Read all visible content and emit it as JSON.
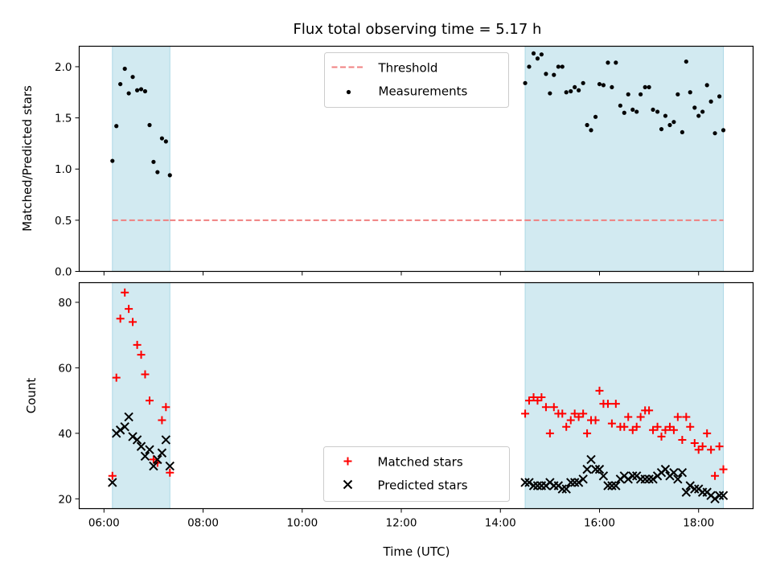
{
  "title": "Flux total observing time = 5.17 h",
  "colors": {
    "shade": "#add8e6",
    "threshold": "#f08080",
    "measurement": "#000000",
    "matched": "#ff0000",
    "predicted": "#000000"
  },
  "chart_data": [
    {
      "type": "scatter",
      "panel": "top",
      "xlabel": "",
      "ylabel": "Matched/Predicted stars",
      "x_unit": "hours (UTC)",
      "xlim": [
        5.5,
        19.1
      ],
      "ylim": [
        0.0,
        2.2
      ],
      "yticks": [
        0.0,
        0.5,
        1.0,
        1.5,
        2.0
      ],
      "ytick_labels": [
        "0.0",
        "0.5",
        "1.0",
        "1.5",
        "2.0"
      ],
      "shaded_spans": [
        [
          6.17,
          7.33
        ],
        [
          14.5,
          18.5
        ]
      ],
      "threshold": {
        "name": "Threshold",
        "y": 0.5,
        "segments": [
          [
            6.17,
            7.33
          ],
          [
            7.33,
            14.5
          ],
          [
            14.5,
            18.5
          ]
        ]
      },
      "legend": {
        "placement": "upper center",
        "entries": [
          "Threshold",
          "Measurements"
        ]
      },
      "series": [
        {
          "name": "Measurements",
          "x": [
            6.17,
            6.25,
            6.33,
            6.42,
            6.5,
            6.58,
            6.67,
            6.75,
            6.83,
            6.92,
            7.0,
            7.08,
            7.17,
            7.25,
            7.33,
            14.5,
            14.58,
            14.67,
            14.75,
            14.83,
            14.92,
            15.0,
            15.08,
            15.17,
            15.25,
            15.33,
            15.42,
            15.5,
            15.58,
            15.67,
            15.75,
            15.83,
            15.92,
            16.0,
            16.08,
            16.17,
            16.25,
            16.33,
            16.42,
            16.5,
            16.58,
            16.67,
            16.75,
            16.83,
            16.92,
            17.0,
            17.08,
            17.17,
            17.25,
            17.33,
            17.42,
            17.5,
            17.58,
            17.67,
            17.75,
            17.83,
            17.92,
            18.0,
            18.08,
            18.17,
            18.25,
            18.33,
            18.42,
            18.5
          ],
          "y": [
            1.08,
            1.42,
            1.83,
            1.98,
            1.74,
            1.9,
            1.77,
            1.78,
            1.76,
            1.43,
            1.07,
            0.97,
            1.3,
            1.27,
            0.94,
            1.84,
            2.0,
            2.13,
            2.08,
            2.12,
            1.93,
            1.74,
            1.92,
            2.0,
            2.0,
            1.75,
            1.76,
            1.8,
            1.77,
            1.84,
            1.43,
            1.38,
            1.51,
            1.83,
            1.82,
            2.04,
            1.8,
            2.04,
            1.62,
            1.55,
            1.73,
            1.58,
            1.56,
            1.73,
            1.8,
            1.8,
            1.58,
            1.56,
            1.39,
            1.52,
            1.43,
            1.46,
            1.73,
            1.36,
            2.05,
            1.75,
            1.6,
            1.52,
            1.56,
            1.82,
            1.66,
            1.35,
            1.71,
            1.38
          ]
        }
      ]
    },
    {
      "type": "scatter",
      "panel": "bottom",
      "xlabel": "Time (UTC)",
      "ylabel": "Count",
      "x_unit": "hours (UTC)",
      "xlim": [
        5.5,
        19.1
      ],
      "ylim": [
        17,
        86
      ],
      "xticks": [
        6,
        8,
        10,
        12,
        14,
        16,
        18
      ],
      "xtick_labels": [
        "06:00",
        "08:00",
        "10:00",
        "12:00",
        "14:00",
        "16:00",
        "18:00"
      ],
      "yticks": [
        20,
        40,
        60,
        80
      ],
      "ytick_labels": [
        "20",
        "40",
        "60",
        "80"
      ],
      "shaded_spans": [
        [
          6.17,
          7.33
        ],
        [
          14.5,
          18.5
        ]
      ],
      "legend": {
        "placement": "lower center",
        "entries": [
          "Matched stars",
          "Predicted stars"
        ]
      },
      "series": [
        {
          "name": "Matched stars",
          "marker": "plus",
          "x": [
            6.17,
            6.25,
            6.33,
            6.42,
            6.5,
            6.58,
            6.67,
            6.75,
            6.83,
            6.92,
            7.0,
            7.08,
            7.17,
            7.25,
            7.33,
            14.5,
            14.58,
            14.67,
            14.75,
            14.83,
            14.92,
            15.0,
            15.08,
            15.17,
            15.25,
            15.33,
            15.42,
            15.5,
            15.58,
            15.67,
            15.75,
            15.83,
            15.92,
            16.0,
            16.08,
            16.17,
            16.25,
            16.33,
            16.42,
            16.5,
            16.58,
            16.67,
            16.75,
            16.83,
            16.92,
            17.0,
            17.08,
            17.17,
            17.25,
            17.33,
            17.42,
            17.5,
            17.58,
            17.67,
            17.75,
            17.83,
            17.92,
            18.0,
            18.08,
            18.17,
            18.25,
            18.33,
            18.42,
            18.5
          ],
          "y": [
            27,
            57,
            75,
            83,
            78,
            74,
            67,
            64,
            58,
            50,
            32,
            31,
            44,
            48,
            28,
            46,
            50,
            51,
            50,
            51,
            48,
            40,
            48,
            46,
            46,
            42,
            44,
            46,
            45,
            46,
            40,
            44,
            44,
            53,
            49,
            49,
            43,
            49,
            42,
            42,
            45,
            41,
            42,
            45,
            47,
            47,
            41,
            42,
            39,
            41,
            42,
            41,
            45,
            38,
            45,
            42,
            37,
            35,
            36,
            40,
            35,
            27,
            36,
            29
          ]
        },
        {
          "name": "Predicted stars",
          "marker": "x",
          "x": [
            6.17,
            6.25,
            6.33,
            6.42,
            6.5,
            6.58,
            6.67,
            6.75,
            6.83,
            6.92,
            7.0,
            7.08,
            7.17,
            7.25,
            7.33,
            14.5,
            14.58,
            14.67,
            14.75,
            14.83,
            14.92,
            15.0,
            15.08,
            15.17,
            15.25,
            15.33,
            15.42,
            15.5,
            15.58,
            15.67,
            15.75,
            15.83,
            15.92,
            16.0,
            16.08,
            16.17,
            16.25,
            16.33,
            16.42,
            16.5,
            16.58,
            16.67,
            16.75,
            16.83,
            16.92,
            17.0,
            17.08,
            17.17,
            17.25,
            17.33,
            17.42,
            17.5,
            17.58,
            17.67,
            17.75,
            17.83,
            17.92,
            18.0,
            18.08,
            18.17,
            18.25,
            18.33,
            18.42,
            18.5
          ],
          "y": [
            25,
            40,
            41,
            42,
            45,
            39,
            38,
            36,
            33,
            35,
            30,
            32,
            34,
            38,
            30,
            25,
            25,
            24,
            24,
            24,
            24,
            25,
            24,
            24,
            23,
            23,
            25,
            25,
            25,
            26,
            29,
            32,
            29,
            29,
            27,
            24,
            24,
            24,
            26,
            27,
            26,
            27,
            27,
            26,
            26,
            26,
            26,
            27,
            28,
            29,
            27,
            28,
            26,
            28,
            22,
            24,
            23,
            23,
            22,
            22,
            21,
            20,
            21,
            21
          ]
        }
      ]
    }
  ]
}
